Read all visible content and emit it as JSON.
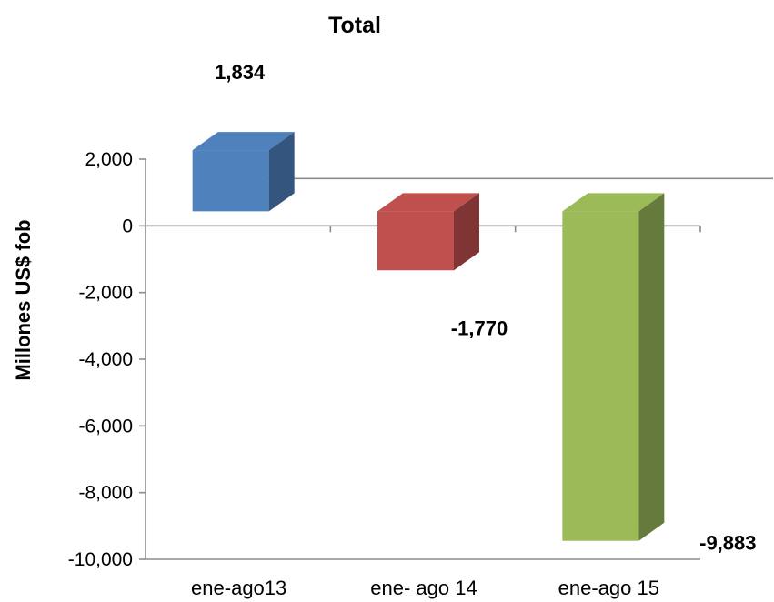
{
  "chart_data": {
    "type": "bar",
    "title": "Total",
    "ylabel": "Millones US$ fob",
    "xlabel": "",
    "categories": [
      "ene-ago13",
      "ene- ago 14",
      "ene-ago 15"
    ],
    "values": [
      1834,
      -1770,
      -9883
    ],
    "data_labels": [
      "1,834",
      "-1,770",
      "-9,883"
    ],
    "ylim": [
      -10000,
      2000
    ],
    "yticks": [
      2000,
      0,
      -2000,
      -4000,
      -6000,
      -8000,
      -10000
    ],
    "ytick_labels": [
      "2,000",
      "0",
      "-2,000",
      "-4,000",
      "-6,000",
      "-8,000",
      "-10,000"
    ],
    "bar_style": "3d",
    "colors": [
      "#4f81bd",
      "#c0504d",
      "#9bbb59"
    ],
    "grid": false,
    "legend": "none"
  }
}
